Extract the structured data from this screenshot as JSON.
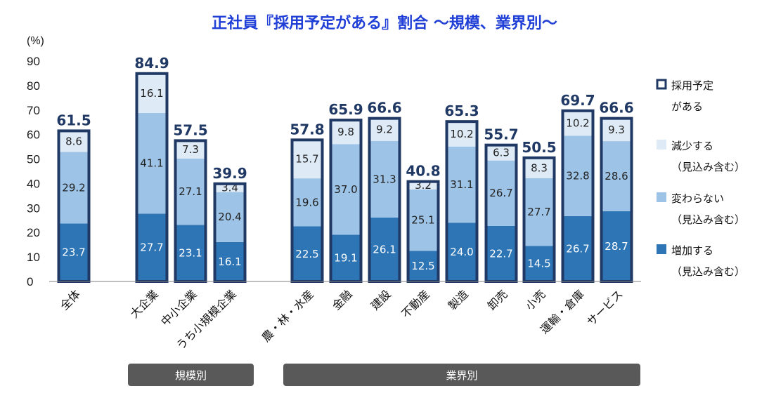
{
  "chart_data": {
    "type": "bar",
    "stacked": true,
    "title": "正社員『採用予定がある』割合 〜規模、業界別〜",
    "ylabel": "(%)",
    "ylim": [
      0,
      90
    ],
    "yticks": [
      0,
      10,
      20,
      30,
      40,
      50,
      60,
      70,
      80,
      90
    ],
    "categories": [
      "全体",
      "大企業",
      "中小企業",
      "うち小規模企業",
      "農・林・水産",
      "金融",
      "建設",
      "不動産",
      "製造",
      "卸売",
      "小売",
      "運輸・倉庫",
      "サービス"
    ],
    "series": [
      {
        "name": "増加する（見込み含む）",
        "color": "#2e75b6",
        "label_color": "#ffffff",
        "values": [
          23.7,
          27.7,
          23.1,
          16.1,
          22.5,
          19.1,
          26.1,
          12.5,
          24.0,
          22.7,
          14.5,
          26.7,
          28.7
        ],
        "labels": [
          "23.7",
          "27.7",
          "23.1",
          "16.1",
          "22.5",
          "19.1",
          "26.1",
          "12.5",
          "24.0",
          "22.7",
          "14.5",
          "26.7",
          "28.7"
        ]
      },
      {
        "name": "変わらない（見込み含む）",
        "color": "#9dc3e6",
        "label_color": "#222222",
        "values": [
          29.2,
          41.1,
          27.1,
          20.4,
          19.6,
          37.0,
          31.3,
          25.1,
          31.1,
          26.7,
          27.7,
          32.8,
          28.6
        ],
        "labels": [
          "29.2",
          "41.1",
          "27.1",
          "20.4",
          "19.6",
          "37.0",
          "31.3",
          "25.1",
          "31.1",
          "26.7",
          "27.7",
          "32.8",
          "28.6"
        ]
      },
      {
        "name": "減少する（見込み含む）",
        "color": "#deebf7",
        "label_color": "#222222",
        "values": [
          8.6,
          16.1,
          7.3,
          3.4,
          15.7,
          9.8,
          9.2,
          3.2,
          10.2,
          6.3,
          8.3,
          10.2,
          9.3
        ],
        "labels": [
          "8.6",
          "16.1",
          "7.3",
          "3.4",
          "15.7",
          "9.8",
          "9.2",
          "3.2",
          "10.2",
          "6.3",
          "8.3",
          "10.2",
          "9.3"
        ]
      }
    ],
    "totals": [
      61.5,
      84.9,
      57.5,
      39.9,
      57.8,
      65.9,
      66.6,
      40.8,
      65.3,
      55.7,
      50.5,
      69.7,
      66.6
    ],
    "total_labels": [
      "61.5",
      "84.9",
      "57.5",
      "39.9",
      "57.8",
      "65.9",
      "66.6",
      "40.8",
      "65.3",
      "55.7",
      "50.5",
      "69.7",
      "66.6"
    ],
    "legend": [
      {
        "line1": "採用予定",
        "line2": "がある",
        "swatch": "outline"
      },
      {
        "line1": "減少する",
        "line2": "（見込み含む）",
        "swatch": "#deebf7"
      },
      {
        "line1": "変わらない",
        "line2": "（見込み含む）",
        "swatch": "#9dc3e6"
      },
      {
        "line1": "増加する",
        "line2": "（見込み含む）",
        "swatch": "#2e75b6"
      }
    ],
    "groups": [
      {
        "label": "規模別",
        "from": 1,
        "to": 3
      },
      {
        "label": "業界別",
        "from": 4,
        "to": 12
      }
    ],
    "colors": {
      "title": "#1f3fd6",
      "outline": "#1f3864",
      "total_text": "#203864",
      "group_bg": "#595959",
      "axis": "#7f7f7f"
    }
  }
}
